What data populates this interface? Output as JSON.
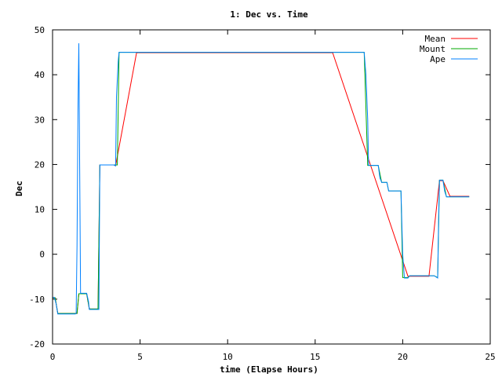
{
  "chart_data": {
    "type": "line",
    "title": "1: Dec vs. Time",
    "xlabel": "time (Elapse Hours)",
    "ylabel": "Dec",
    "xlim": [
      0,
      25
    ],
    "ylim": [
      -20,
      50
    ],
    "xticks": [
      0,
      5,
      10,
      15,
      20,
      25
    ],
    "yticks": [
      -20,
      -10,
      0,
      10,
      20,
      30,
      40,
      50
    ],
    "grid": false,
    "legend_position": "top-right",
    "series": [
      {
        "name": "Mean",
        "color": "#ff0000",
        "points": [
          [
            0.0,
            -9.7
          ],
          [
            0.15,
            -9.7
          ],
          [
            0.3,
            -13.2
          ],
          [
            1.4,
            -13.2
          ],
          [
            1.5,
            -8.8
          ],
          [
            1.95,
            -8.8
          ],
          [
            2.1,
            -12.2
          ],
          [
            2.6,
            -12.2
          ],
          [
            2.7,
            19.9
          ],
          [
            3.5,
            19.9
          ],
          [
            3.6,
            19.7
          ],
          [
            4.8,
            44.9
          ],
          [
            16.0,
            44.9
          ],
          [
            20.3,
            -4.9
          ],
          [
            21.5,
            -4.9
          ],
          [
            22.1,
            16.4
          ],
          [
            22.3,
            16.4
          ],
          [
            22.7,
            12.9
          ],
          [
            23.8,
            12.9
          ]
        ]
      },
      {
        "name": "Mount",
        "color": "#00aa00",
        "points": [
          [
            0.0,
            -9.7
          ],
          [
            0.15,
            -9.7
          ],
          [
            0.3,
            -13.2
          ],
          [
            1.4,
            -13.2
          ],
          [
            1.5,
            -8.8
          ],
          [
            1.95,
            -8.8
          ],
          [
            2.1,
            -12.2
          ],
          [
            2.6,
            -12.2
          ],
          [
            2.7,
            19.9
          ],
          [
            3.7,
            19.9
          ],
          [
            3.8,
            45.0
          ],
          [
            17.8,
            45.0
          ],
          [
            18.0,
            19.8
          ],
          [
            18.6,
            19.8
          ],
          [
            18.8,
            16.0
          ],
          [
            19.1,
            16.0
          ],
          [
            19.2,
            14.1
          ],
          [
            19.9,
            14.1
          ],
          [
            20.0,
            -5.2
          ],
          [
            20.3,
            -5.2
          ],
          [
            20.4,
            -4.8
          ],
          [
            21.8,
            -4.8
          ],
          [
            22.0,
            -5.2
          ],
          [
            22.1,
            16.5
          ],
          [
            22.3,
            16.5
          ],
          [
            22.5,
            12.8
          ],
          [
            23.8,
            12.8
          ]
        ]
      },
      {
        "name": "Ape",
        "color": "#0080ff",
        "points": [
          [
            0.0,
            -9.6
          ],
          [
            0.1,
            -9.6
          ],
          [
            0.2,
            -11.0
          ],
          [
            0.3,
            -13.3
          ],
          [
            1.3,
            -13.3
          ],
          [
            1.35,
            -13.2
          ],
          [
            1.4,
            2.0
          ],
          [
            1.45,
            32.0
          ],
          [
            1.5,
            47.0
          ],
          [
            1.55,
            19.0
          ],
          [
            1.6,
            -8.7
          ],
          [
            1.95,
            -8.7
          ],
          [
            2.05,
            -10.5
          ],
          [
            2.1,
            -12.3
          ],
          [
            2.65,
            -12.3
          ],
          [
            2.7,
            19.9
          ],
          [
            3.5,
            19.9
          ],
          [
            3.6,
            19.7
          ],
          [
            3.65,
            35.0
          ],
          [
            3.75,
            43.0
          ],
          [
            3.8,
            45.0
          ],
          [
            17.8,
            45.0
          ],
          [
            17.9,
            40.0
          ],
          [
            18.0,
            30.0
          ],
          [
            18.05,
            19.8
          ],
          [
            18.6,
            19.8
          ],
          [
            18.7,
            17.0
          ],
          [
            18.8,
            16.0
          ],
          [
            19.1,
            16.0
          ],
          [
            19.2,
            14.1
          ],
          [
            19.9,
            14.1
          ],
          [
            20.0,
            0.0
          ],
          [
            20.1,
            -5.3
          ],
          [
            20.3,
            -5.3
          ],
          [
            20.4,
            -4.8
          ],
          [
            21.8,
            -4.8
          ],
          [
            22.0,
            -5.3
          ],
          [
            22.05,
            8.0
          ],
          [
            22.1,
            16.5
          ],
          [
            22.3,
            16.5
          ],
          [
            22.4,
            14.0
          ],
          [
            22.5,
            12.8
          ],
          [
            23.8,
            12.8
          ]
        ]
      }
    ]
  }
}
